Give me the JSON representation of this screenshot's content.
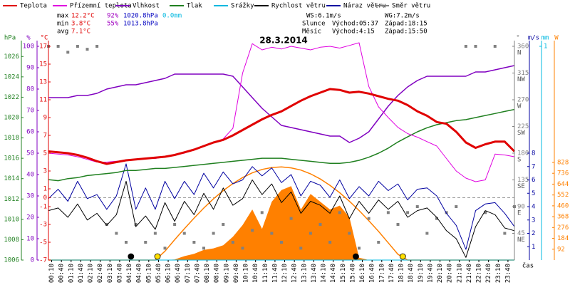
{
  "chart_data": {
    "type": "line",
    "title": "28.3.2014",
    "x": [
      0,
      0.5,
      1,
      1.5,
      2,
      2.5,
      3,
      3.5,
      4,
      4.5,
      5,
      5.5,
      6,
      6.5,
      7,
      7.5,
      8,
      8.5,
      9,
      9.5,
      10,
      10.5,
      11,
      11.5,
      12,
      12.5,
      13,
      13.5,
      14,
      14.5,
      15,
      15.5,
      16,
      16.5,
      17,
      17.5,
      18,
      18.5,
      19,
      19.5,
      20,
      20.5,
      21,
      21.5,
      22,
      22.5,
      23,
      23.5,
      24
    ],
    "xlim": [
      0,
      24
    ],
    "xlabel": "čas",
    "xticks": [
      {
        "value": 0.167,
        "label": "00:10"
      },
      {
        "value": 0.667,
        "label": "00:40"
      },
      {
        "value": 1.167,
        "label": "01:10"
      },
      {
        "value": 1.667,
        "label": "01:40"
      },
      {
        "value": 2.167,
        "label": "02:10"
      },
      {
        "value": 2.667,
        "label": "02:40"
      },
      {
        "value": 3.167,
        "label": "03:10"
      },
      {
        "value": 3.667,
        "label": "03:40"
      },
      {
        "value": 4.167,
        "label": "04:10"
      },
      {
        "value": 4.667,
        "label": "04:40"
      },
      {
        "value": 5.167,
        "label": "05:10"
      },
      {
        "value": 5.667,
        "label": "05:40"
      },
      {
        "value": 6.167,
        "label": "06:10"
      },
      {
        "value": 6.667,
        "label": "06:40"
      },
      {
        "value": 7.167,
        "label": "07:10"
      },
      {
        "value": 7.667,
        "label": "07:40"
      },
      {
        "value": 8.167,
        "label": "08:10"
      },
      {
        "value": 8.667,
        "label": "08:40"
      },
      {
        "value": 9.167,
        "label": "09:10"
      },
      {
        "value": 9.667,
        "label": "09:40"
      },
      {
        "value": 10.167,
        "label": "10:10"
      },
      {
        "value": 10.667,
        "label": "10:40"
      },
      {
        "value": 11.167,
        "label": "11:10"
      },
      {
        "value": 11.667,
        "label": "11:40"
      },
      {
        "value": 12.167,
        "label": "12:10"
      },
      {
        "value": 12.667,
        "label": "12:40"
      },
      {
        "value": 13.167,
        "label": "13:10"
      },
      {
        "value": 13.667,
        "label": "13:40"
      },
      {
        "value": 14.167,
        "label": "14:10"
      },
      {
        "value": 14.667,
        "label": "14:40"
      },
      {
        "value": 15.167,
        "label": "15:10"
      },
      {
        "value": 15.667,
        "label": "15:40"
      },
      {
        "value": 16.167,
        "label": "16:10"
      },
      {
        "value": 16.667,
        "label": "16:40"
      },
      {
        "value": 17.167,
        "label": "17:10"
      },
      {
        "value": 17.667,
        "label": "17:40"
      },
      {
        "value": 18.167,
        "label": "18:10"
      },
      {
        "value": 18.667,
        "label": "18:40"
      },
      {
        "value": 19.167,
        "label": "19:10"
      },
      {
        "value": 19.667,
        "label": "19:40"
      },
      {
        "value": 20.167,
        "label": "20:10"
      },
      {
        "value": 20.667,
        "label": "20:40"
      },
      {
        "value": 21.167,
        "label": "21:10"
      },
      {
        "value": 21.667,
        "label": "21:40"
      },
      {
        "value": 22.167,
        "label": "22:10"
      },
      {
        "value": 22.667,
        "label": "22:40"
      },
      {
        "value": 23.167,
        "label": "23:10"
      },
      {
        "value": 23.667,
        "label": "23:40"
      }
    ],
    "ylabel": "°C",
    "ycolor": "#e00000",
    "ylim": [
      -7,
      17
    ],
    "yticks": [
      17,
      15,
      13,
      11,
      9,
      7,
      5,
      3,
      1,
      0,
      -1,
      -3,
      -5,
      -7
    ],
    "y2label": "%",
    "y2color": "#8000c0",
    "y2lim": [
      0,
      100
    ],
    "y2ticks": [
      100,
      90,
      80,
      70,
      60,
      50,
      40,
      30,
      20,
      10,
      0
    ],
    "y3label": "hPa",
    "y3color": "#208020",
    "y3lim": [
      1006,
      1027
    ],
    "y3ticks": [
      1026,
      1024,
      1022,
      1020,
      1018,
      1016,
      1014,
      1012,
      1010,
      1008,
      1006
    ],
    "y4label": "m/s",
    "y4color": "#0000a0",
    "y4lim": [
      0,
      16
    ],
    "y4ticks": [
      8,
      7,
      6,
      5,
      4,
      3,
      2,
      1
    ],
    "y5label": "°",
    "y5color": "#808080",
    "y5lim": [
      0,
      360
    ],
    "y5ticks": [
      360,
      315,
      270,
      225,
      180,
      135,
      90,
      45
    ],
    "y5tick_names": [
      "N",
      "NW",
      "W",
      "SW",
      "S",
      "SE",
      "E",
      "NE"
    ],
    "y6label": "mm",
    "y6color": "#00b8e0",
    "y6lim": [
      0,
      1
    ],
    "y6ticks": [
      1
    ],
    "y7label": "W",
    "y7color": "#ff8000",
    "y7lim": [
      0,
      1813
    ],
    "y7ticks": [
      828,
      736,
      644,
      552,
      460,
      368,
      276,
      184,
      92
    ],
    "zero_line": true,
    "series": [
      {
        "name": "Teplota",
        "color": "#e00000",
        "axis": "y",
        "values": [
          5.2,
          5.1,
          5.0,
          4.8,
          4.5,
          4.1,
          3.8,
          4.0,
          4.2,
          4.3,
          4.4,
          4.5,
          4.6,
          4.8,
          5.1,
          5.4,
          5.8,
          6.2,
          6.5,
          7.0,
          7.6,
          8.2,
          8.8,
          9.3,
          9.7,
          10.3,
          10.9,
          11.4,
          11.8,
          12.2,
          12.1,
          11.8,
          11.9,
          11.7,
          11.4,
          11.1,
          10.9,
          10.4,
          9.7,
          9.2,
          8.5,
          8.3,
          7.4,
          6.2,
          5.6,
          6.0,
          6.3,
          6.3,
          5.2
        ]
      },
      {
        "name": "Přízemní teplota",
        "color": "#e000e0",
        "axis": "y",
        "values": [
          5.0,
          4.9,
          4.8,
          4.6,
          4.3,
          4.0,
          4.0,
          4.1,
          4.2,
          4.3,
          4.4,
          4.4,
          4.6,
          4.8,
          5.0,
          5.4,
          5.8,
          6.2,
          6.6,
          7.8,
          14.0,
          17.3,
          16.6,
          16.9,
          16.7,
          17.0,
          16.8,
          16.6,
          16.9,
          17.0,
          16.8,
          17.1,
          17.4,
          12.5,
          10.2,
          9.0,
          7.9,
          7.2,
          6.8,
          6.3,
          5.8,
          4.4,
          3.0,
          2.2,
          1.8,
          2.0,
          4.9,
          4.8,
          4.6
        ]
      },
      {
        "name": "Vlhkost",
        "color": "#8000c0",
        "axis": "y2",
        "values": [
          76,
          76,
          76,
          77,
          77,
          78,
          80,
          81,
          82,
          82,
          83,
          84,
          85,
          87,
          87,
          87,
          87,
          87,
          87,
          86,
          81,
          76,
          71,
          67,
          63,
          62,
          61,
          60,
          59,
          58,
          58,
          55,
          57,
          60,
          66,
          72,
          77,
          81,
          84,
          86,
          86,
          86,
          86,
          86,
          88,
          88,
          89,
          90,
          91
        ]
      },
      {
        "name": "Tlak",
        "color": "#208020",
        "axis": "y3",
        "values": [
          1013.9,
          1013.8,
          1014.0,
          1014.1,
          1014.3,
          1014.4,
          1014.5,
          1014.6,
          1014.8,
          1014.8,
          1014.9,
          1015.0,
          1015.0,
          1015.1,
          1015.2,
          1015.3,
          1015.4,
          1015.5,
          1015.6,
          1015.7,
          1015.8,
          1015.9,
          1016.0,
          1016.0,
          1016.0,
          1015.9,
          1015.8,
          1015.7,
          1015.6,
          1015.5,
          1015.5,
          1015.6,
          1015.8,
          1016.1,
          1016.5,
          1017.0,
          1017.6,
          1018.1,
          1018.6,
          1019.0,
          1019.3,
          1019.5,
          1019.7,
          1019.8,
          1020.0,
          1020.2,
          1020.4,
          1020.6,
          1020.8
        ]
      },
      {
        "name": "Srážky",
        "color": "#00b8e0",
        "axis": "y6",
        "values": [
          0,
          0,
          0,
          0,
          0,
          0,
          0,
          0,
          0,
          0,
          0,
          0,
          0,
          0,
          0,
          0,
          0,
          0,
          0,
          0,
          0,
          0,
          0,
          0,
          0,
          0,
          0,
          0,
          0,
          0,
          0,
          0,
          0,
          0,
          0,
          0,
          0,
          0,
          0,
          0,
          0,
          0,
          0,
          0,
          0,
          0,
          0,
          0,
          0
        ]
      },
      {
        "name": "Rychlost větru",
        "color": "#000000",
        "axis": "y4",
        "values": [
          3.7,
          3.9,
          3.2,
          4.2,
          3.0,
          3.5,
          2.6,
          3.4,
          5.9,
          2.5,
          3.3,
          2.3,
          4.3,
          2.9,
          4.4,
          3.4,
          5.0,
          3.8,
          5.4,
          4.1,
          4.6,
          6.0,
          4.9,
          5.7,
          4.3,
          5.1,
          3.5,
          4.4,
          4.1,
          3.5,
          4.8,
          3.1,
          4.4,
          3.5,
          4.5,
          3.8,
          4.4,
          3.2,
          3.7,
          3.9,
          3.2,
          2.2,
          1.6,
          0.2,
          2.5,
          3.7,
          3.4,
          2.4,
          2.2
        ]
      },
      {
        "name": "Náraz větru",
        "color": "#0000a0",
        "axis": "y4",
        "values": [
          4.6,
          5.3,
          4.4,
          5.9,
          4.6,
          4.9,
          3.8,
          4.8,
          7.2,
          3.8,
          5.4,
          3.8,
          5.9,
          4.6,
          5.9,
          4.9,
          6.5,
          5.4,
          6.6,
          5.7,
          6.0,
          7.0,
          6.3,
          6.9,
          5.8,
          6.4,
          4.8,
          5.9,
          5.6,
          4.7,
          6.0,
          4.6,
          5.5,
          4.8,
          5.9,
          5.2,
          5.7,
          4.5,
          5.3,
          5.4,
          4.8,
          3.5,
          2.6,
          0.8,
          3.7,
          4.2,
          4.3,
          3.5,
          2.5
        ]
      },
      {
        "name": "Směr větru",
        "color": "#808080",
        "axis": "y5",
        "mark": "square",
        "values": [
          360,
          360,
          350,
          360,
          355,
          360,
          60,
          45,
          30,
          60,
          30,
          45,
          20,
          60,
          45,
          30,
          20,
          45,
          60,
          30,
          20,
          50,
          80,
          45,
          30,
          70,
          20,
          45,
          60,
          30,
          80,
          45,
          20,
          70,
          30,
          80,
          60,
          80,
          90,
          45,
          70,
          80,
          90,
          360,
          360,
          80,
          360,
          45,
          90
        ]
      }
    ],
    "solar": {
      "color": "#ff8000",
      "axis": "y7",
      "values": [
        0,
        0,
        0,
        0,
        0,
        0,
        0,
        0,
        0,
        0,
        0,
        0,
        0,
        5,
        33,
        53,
        86,
        99,
        126,
        198,
        297,
        429,
        264,
        495,
        594,
        627,
        429,
        561,
        495,
        429,
        462,
        363,
        20,
        0,
        0,
        0,
        0,
        0,
        0,
        0,
        0,
        0,
        0,
        0,
        0,
        0,
        0,
        0,
        0
      ]
    },
    "solar_max": {
      "color": "#ff8000",
      "axis": "y7",
      "values": [
        0,
        0,
        0,
        0,
        0,
        0,
        0,
        0,
        0,
        0,
        0,
        0,
        75,
        172,
        266,
        356,
        441,
        519,
        589,
        649,
        700,
        740,
        769,
        785,
        790,
        782,
        763,
        731,
        688,
        634,
        571,
        499,
        420,
        334,
        243,
        146,
        49,
        0,
        0,
        0,
        0,
        0,
        0,
        0,
        0,
        0,
        0,
        0,
        0
      ]
    },
    "stats": [
      {
        "label": "max",
        "t": "12.2°C",
        "h": "92%",
        "p": "1020.8hPa",
        "r": "0.0mm"
      },
      {
        "label": "min",
        "t": "3.8°C",
        "h": "55%",
        "p": "1013.8hPa"
      },
      {
        "label": "avg",
        "t": "7.1°C"
      }
    ],
    "wind": {
      "ws": "WS:6.1m/s",
      "wg": "WG:7.2m/s"
    },
    "sun": {
      "label": "Slunce",
      "rise_label": "Východ:",
      "rise": "05:37",
      "set_label": "Západ:",
      "set": "18:15",
      "color": "#ffe000"
    },
    "moon": {
      "label": "Měsíc",
      "rise_label": "Východ:",
      "rise": "4:15",
      "set_label": "Západ:",
      "set": "15:50",
      "color": "#000000"
    }
  }
}
